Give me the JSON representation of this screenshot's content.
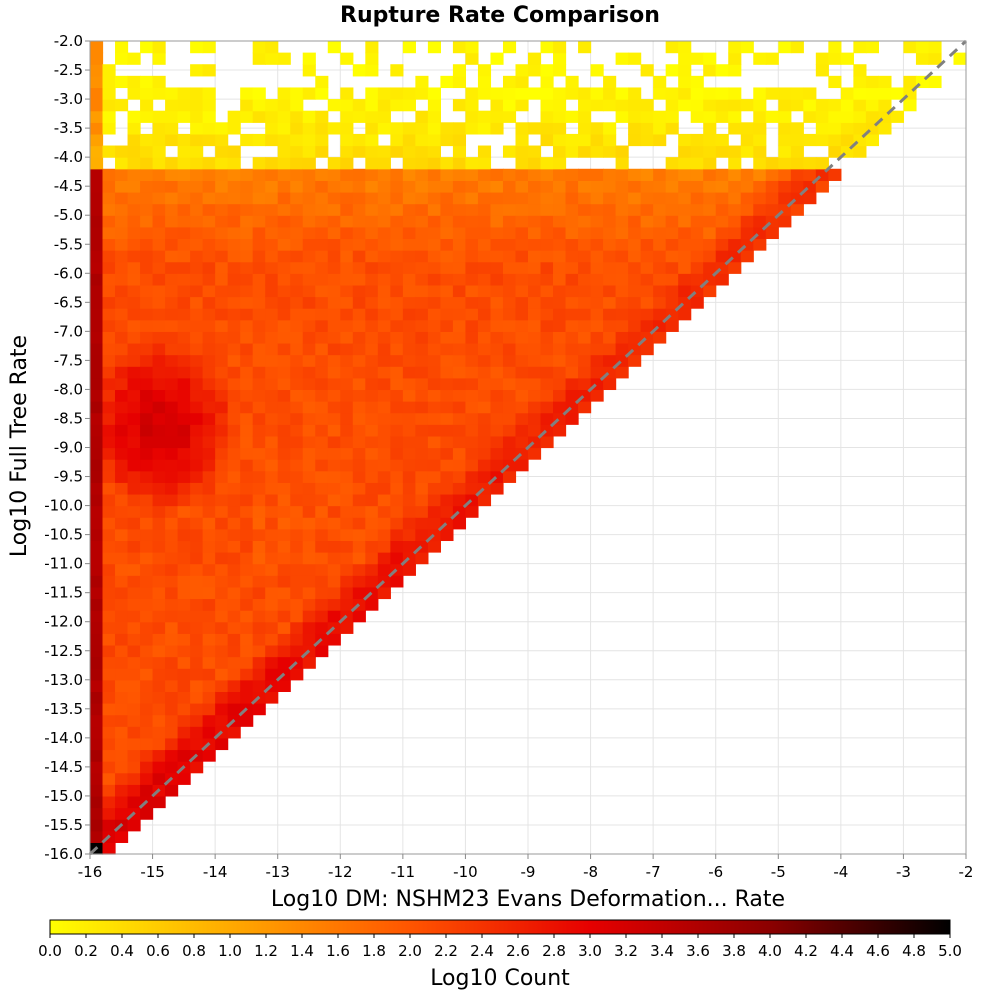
{
  "chart_data": {
    "type": "heatmap",
    "title": "Rupture Rate Comparison",
    "xlabel": "Log10 DM: NSHM23 Evans Deformation... Rate",
    "ylabel": "Log10 Full Tree Rate",
    "xlim": [
      -16,
      -2
    ],
    "ylim": [
      -16,
      -2
    ],
    "x_ticks": [
      "-16",
      "-15",
      "-14",
      "-13",
      "-12",
      "-11",
      "-10",
      "-9",
      "-8",
      "-7",
      "-6",
      "-5",
      "-4",
      "-3",
      "-2"
    ],
    "y_ticks": [
      "-2.0",
      "-2.5",
      "-3.0",
      "-3.5",
      "-4.0",
      "-4.5",
      "-5.0",
      "-5.5",
      "-6.0",
      "-6.5",
      "-7.0",
      "-7.5",
      "-8.0",
      "-8.5",
      "-9.0",
      "-9.5",
      "-10.0",
      "-10.5",
      "-11.0",
      "-11.5",
      "-12.0",
      "-12.5",
      "-13.0",
      "-13.5",
      "-14.0",
      "-14.5",
      "-15.0",
      "-15.5",
      "-16.0"
    ],
    "bin_size": 0.2,
    "reference_line": {
      "style": "dashed",
      "from": [
        -16,
        -16
      ],
      "to": [
        -2,
        -2
      ],
      "color": "#808080"
    },
    "colorbar": {
      "label": "Log10 Count",
      "range": [
        0,
        5
      ],
      "ticks": [
        "0.0",
        "0.2",
        "0.4",
        "0.6",
        "0.8",
        "1.0",
        "1.2",
        "1.4",
        "1.6",
        "1.8",
        "2.0",
        "2.2",
        "2.4",
        "2.6",
        "2.8",
        "3.0",
        "3.2",
        "3.4",
        "3.6",
        "3.8",
        "4.0",
        "4.2",
        "4.4",
        "4.6",
        "4.8",
        "5.0"
      ],
      "colors": [
        "#ffff00",
        "#ffaa00",
        "#ff5500",
        "#e60000",
        "#8b0000",
        "#000000"
      ]
    },
    "density_model": {
      "description": "approximate log10 count per 0.2 bin, populated where y >= x (plus a thin band below the diagonal)",
      "left_edge_column": {
        "x": -16,
        "value": 3.6
      },
      "main_cluster": {
        "x": -15,
        "y": -8.7,
        "peak": 3.2
      },
      "diagonal_ridge": {
        "peak": 3.0,
        "near_min_x": -14,
        "falloff_toward_max_x": 2.2
      },
      "sparse_region": {
        "y_above": -4.3,
        "value": 0.1
      },
      "saturation_corner": {
        "x": -16,
        "y": -16,
        "value": 5.0
      }
    }
  }
}
